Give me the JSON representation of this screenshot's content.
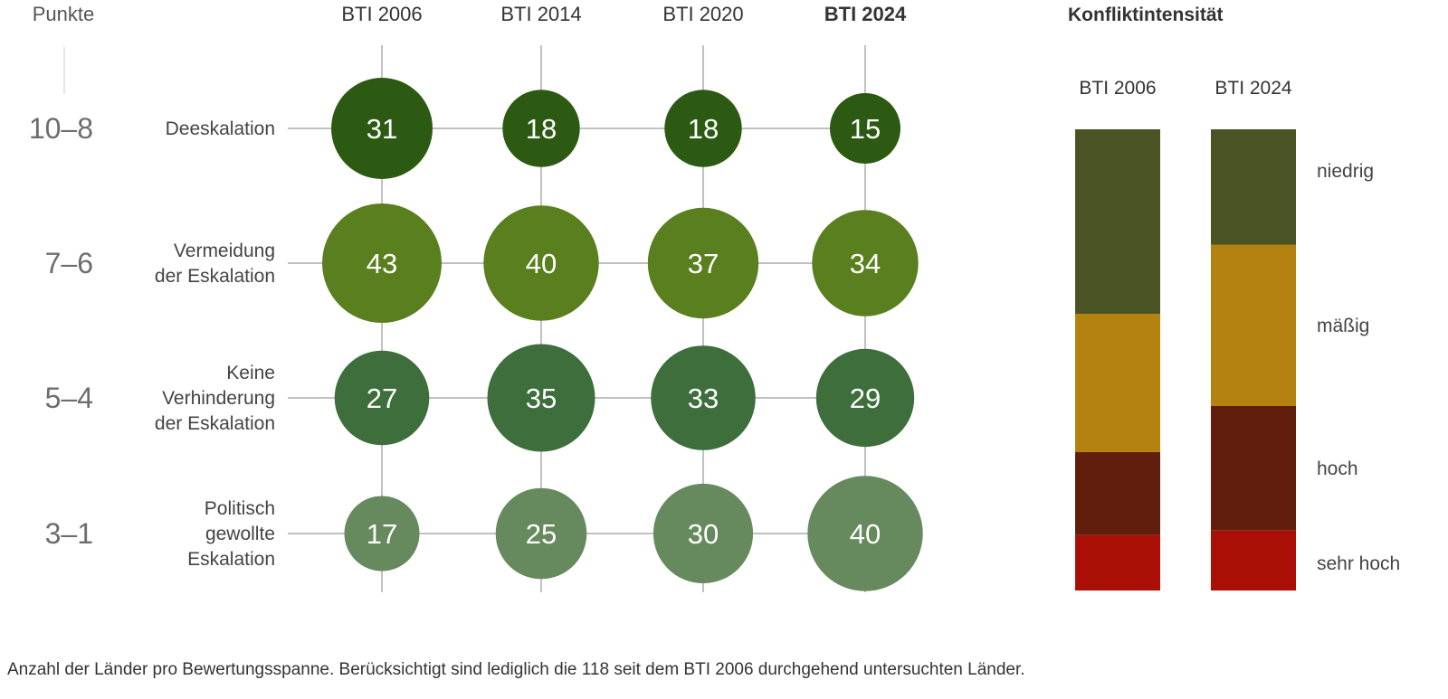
{
  "chart_data": [
    {
      "type": "bubble-matrix",
      "y_axis_title": "Punkte",
      "columns": [
        "BTI 2006",
        "BTI 2014",
        "BTI 2020",
        "BTI 2024"
      ],
      "highlight_column": "BTI 2024",
      "rows": [
        {
          "range": "10–8",
          "label_lines": [
            "Deeskalation"
          ],
          "values": [
            31,
            18,
            18,
            15
          ],
          "color": "#2d5a12"
        },
        {
          "range": "7–6",
          "label_lines": [
            "Vermeidung",
            "der Eskalation"
          ],
          "values": [
            43,
            40,
            37,
            34
          ],
          "color": "#5a7f1e"
        },
        {
          "range": "5–4",
          "label_lines": [
            "Keine",
            "Verhinderung",
            "der Eskalation"
          ],
          "values": [
            27,
            35,
            33,
            29
          ],
          "color": "#3d6e3b"
        },
        {
          "range": "3–1",
          "label_lines": [
            "Politisch",
            "gewollte",
            "Eskalation"
          ],
          "values": [
            17,
            25,
            30,
            40
          ],
          "color": "#668a5e"
        }
      ]
    },
    {
      "type": "stacked-bar",
      "title": "Konfliktintensität",
      "categories": [
        "BTI 2006",
        "BTI 2024"
      ],
      "series": [
        {
          "name": "niedrig",
          "values": [
            40,
            25
          ],
          "color": "#4a5323"
        },
        {
          "name": "mäßig",
          "values": [
            30,
            35
          ],
          "color": "#b48211"
        },
        {
          "name": "hoch",
          "values": [
            18,
            27
          ],
          "color": "#621e0c"
        },
        {
          "name": "sehr hoch",
          "values": [
            12,
            13
          ],
          "color": "#a90f05"
        }
      ]
    }
  ],
  "footnote": "Anzahl der Länder pro Bewertungsspanne. Berücksichtigt sind lediglich die 118 seit dem BTI 2006 durchgehend untersuchten Länder."
}
